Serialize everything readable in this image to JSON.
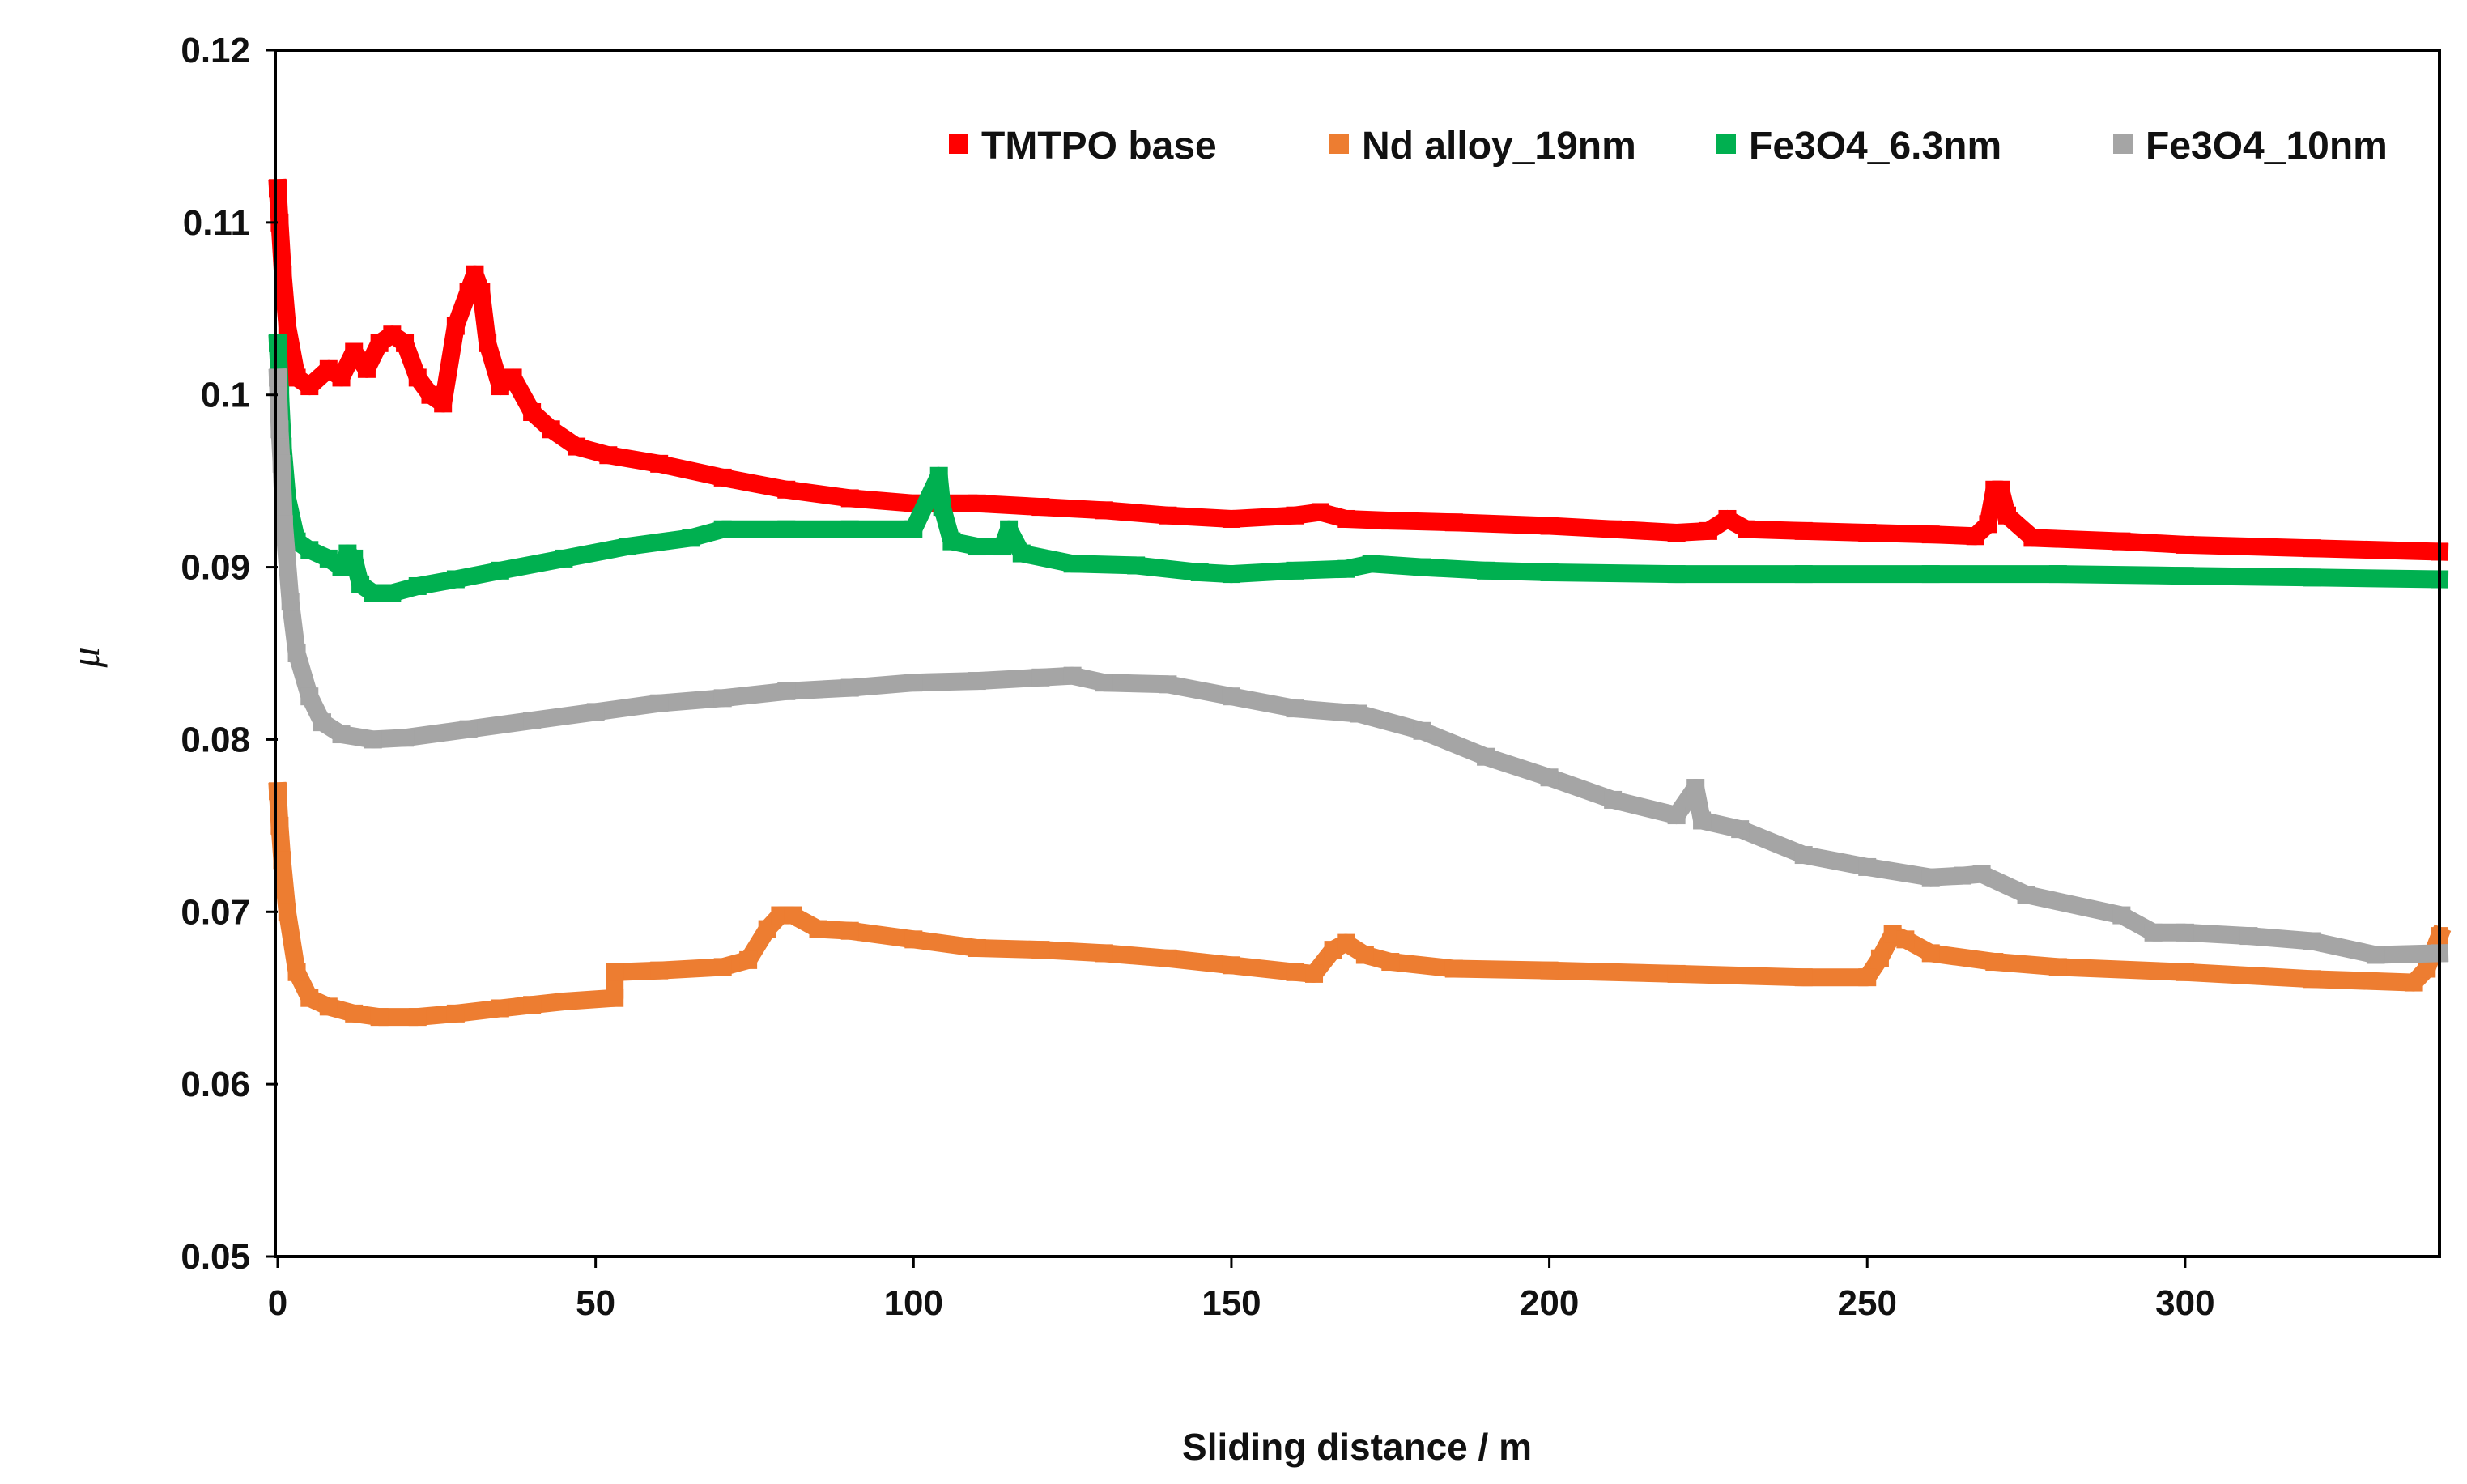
{
  "chart_data": {
    "type": "scatter",
    "title": "",
    "xlabel": "Sliding distance / m",
    "ylabel": "μ",
    "xlim": [
      0,
      340
    ],
    "ylim": [
      0.05,
      0.12
    ],
    "x_ticks": [
      "0",
      "50",
      "100",
      "150",
      "200",
      "250",
      "300"
    ],
    "y_ticks": [
      "0.05",
      "0.06",
      "0.07",
      "0.08",
      "0.09",
      "0.1",
      "0.11",
      "0.12"
    ],
    "grid": false,
    "legend_position": "top-right",
    "series": [
      {
        "name": "TMTPO base",
        "color": "#ff0000",
        "points": [
          [
            0,
            0.112
          ],
          [
            0.3,
            0.11
          ],
          [
            0.8,
            0.107
          ],
          [
            1.5,
            0.104
          ],
          [
            3,
            0.101
          ],
          [
            5,
            0.1005
          ],
          [
            8,
            0.1015
          ],
          [
            10,
            0.101
          ],
          [
            12,
            0.1025
          ],
          [
            14,
            0.1015
          ],
          [
            16,
            0.103
          ],
          [
            18,
            0.1035
          ],
          [
            20,
            0.103
          ],
          [
            22,
            0.101
          ],
          [
            24,
            0.1
          ],
          [
            26,
            0.0995
          ],
          [
            28,
            0.104
          ],
          [
            30,
            0.106
          ],
          [
            31,
            0.107
          ],
          [
            32,
            0.106
          ],
          [
            33,
            0.103
          ],
          [
            35,
            0.1005
          ],
          [
            37,
            0.101
          ],
          [
            40,
            0.099
          ],
          [
            43,
            0.098
          ],
          [
            47,
            0.097
          ],
          [
            52,
            0.0965
          ],
          [
            60,
            0.096
          ],
          [
            70,
            0.0952
          ],
          [
            80,
            0.0945
          ],
          [
            90,
            0.094
          ],
          [
            100,
            0.0937
          ],
          [
            110,
            0.0937
          ],
          [
            120,
            0.0935
          ],
          [
            130,
            0.0933
          ],
          [
            140,
            0.093
          ],
          [
            150,
            0.0928
          ],
          [
            160,
            0.093
          ],
          [
            164,
            0.0932
          ],
          [
            168,
            0.0928
          ],
          [
            175,
            0.0927
          ],
          [
            185,
            0.0926
          ],
          [
            200,
            0.0924
          ],
          [
            210,
            0.0922
          ],
          [
            220,
            0.092
          ],
          [
            225,
            0.0921
          ],
          [
            228,
            0.0928
          ],
          [
            231,
            0.0922
          ],
          [
            240,
            0.0921
          ],
          [
            250,
            0.092
          ],
          [
            260,
            0.0919
          ],
          [
            267,
            0.0918
          ],
          [
            269,
            0.0925
          ],
          [
            270,
            0.0945
          ],
          [
            271,
            0.0945
          ],
          [
            272,
            0.093
          ],
          [
            276,
            0.0917
          ],
          [
            290,
            0.0915
          ],
          [
            300,
            0.0913
          ],
          [
            320,
            0.0911
          ],
          [
            340,
            0.0909
          ]
        ]
      },
      {
        "name": "Nd alloy_19nm",
        "color": "#ed7d31",
        "points": [
          [
            0,
            0.077
          ],
          [
            0.3,
            0.075
          ],
          [
            0.7,
            0.073
          ],
          [
            1.5,
            0.07
          ],
          [
            3,
            0.0665
          ],
          [
            5,
            0.065
          ],
          [
            8,
            0.0645
          ],
          [
            12,
            0.0641
          ],
          [
            16,
            0.0639
          ],
          [
            22,
            0.0639
          ],
          [
            28,
            0.0641
          ],
          [
            35,
            0.0644
          ],
          [
            40,
            0.0646
          ],
          [
            45,
            0.0648
          ],
          [
            53,
            0.065
          ],
          [
            53,
            0.0665
          ],
          [
            60,
            0.0666
          ],
          [
            70,
            0.0668
          ],
          [
            74,
            0.0672
          ],
          [
            77,
            0.069
          ],
          [
            79,
            0.0698
          ],
          [
            81,
            0.0698
          ],
          [
            85,
            0.069
          ],
          [
            90,
            0.0689
          ],
          [
            100,
            0.0684
          ],
          [
            110,
            0.0679
          ],
          [
            120,
            0.0678
          ],
          [
            130,
            0.0676
          ],
          [
            140,
            0.0673
          ],
          [
            150,
            0.0669
          ],
          [
            160,
            0.0665
          ],
          [
            163,
            0.0664
          ],
          [
            166,
            0.0678
          ],
          [
            168,
            0.0682
          ],
          [
            171,
            0.0675
          ],
          [
            175,
            0.0671
          ],
          [
            185,
            0.0667
          ],
          [
            200,
            0.0666
          ],
          [
            220,
            0.0664
          ],
          [
            240,
            0.0662
          ],
          [
            250,
            0.0662
          ],
          [
            252,
            0.0673
          ],
          [
            254,
            0.0687
          ],
          [
            256,
            0.0684
          ],
          [
            260,
            0.0676
          ],
          [
            270,
            0.0671
          ],
          [
            280,
            0.0668
          ],
          [
            300,
            0.0665
          ],
          [
            320,
            0.0661
          ],
          [
            336,
            0.0659
          ],
          [
            338,
            0.0667
          ],
          [
            340,
            0.0686
          ]
        ]
      },
      {
        "name": "Fe3O4_6.3nm",
        "color": "#00b050",
        "points": [
          [
            0,
            0.103
          ],
          [
            0.4,
            0.1
          ],
          [
            0.8,
            0.097
          ],
          [
            1.5,
            0.094
          ],
          [
            3,
            0.0915
          ],
          [
            5,
            0.091
          ],
          [
            8,
            0.0905
          ],
          [
            10,
            0.09
          ],
          [
            11,
            0.0908
          ],
          [
            12,
            0.0905
          ],
          [
            13,
            0.089
          ],
          [
            15,
            0.0885
          ],
          [
            18,
            0.0885
          ],
          [
            22,
            0.0889
          ],
          [
            28,
            0.0893
          ],
          [
            35,
            0.0898
          ],
          [
            45,
            0.0905
          ],
          [
            55,
            0.0912
          ],
          [
            65,
            0.0917
          ],
          [
            70,
            0.0922
          ],
          [
            80,
            0.0922
          ],
          [
            90,
            0.0922
          ],
          [
            100,
            0.0922
          ],
          [
            104,
            0.0953
          ],
          [
            104.5,
            0.0935
          ],
          [
            106,
            0.0915
          ],
          [
            110,
            0.0912
          ],
          [
            114,
            0.0912
          ],
          [
            115,
            0.0922
          ],
          [
            117,
            0.0908
          ],
          [
            125,
            0.0902
          ],
          [
            135,
            0.0901
          ],
          [
            145,
            0.0897
          ],
          [
            150,
            0.0896
          ],
          [
            160,
            0.0898
          ],
          [
            168,
            0.0899
          ],
          [
            172,
            0.0902
          ],
          [
            180,
            0.09
          ],
          [
            190,
            0.0898
          ],
          [
            200,
            0.0897
          ],
          [
            220,
            0.0896
          ],
          [
            240,
            0.0896
          ],
          [
            260,
            0.0896
          ],
          [
            280,
            0.0896
          ],
          [
            300,
            0.0895
          ],
          [
            320,
            0.0894
          ],
          [
            340,
            0.0893
          ]
        ]
      },
      {
        "name": "Fe3O4_10nm",
        "color": "#a5a5a5",
        "points": [
          [
            0,
            0.101
          ],
          [
            0.3,
            0.098
          ],
          [
            0.6,
            0.096
          ],
          [
            1,
            0.0925
          ],
          [
            2,
            0.088
          ],
          [
            3,
            0.085
          ],
          [
            5,
            0.0825
          ],
          [
            7,
            0.081
          ],
          [
            10,
            0.0803
          ],
          [
            15,
            0.08
          ],
          [
            20,
            0.0801
          ],
          [
            30,
            0.0806
          ],
          [
            40,
            0.0811
          ],
          [
            50,
            0.0816
          ],
          [
            60,
            0.0821
          ],
          [
            70,
            0.0824
          ],
          [
            80,
            0.0828
          ],
          [
            90,
            0.083
          ],
          [
            100,
            0.0833
          ],
          [
            110,
            0.0834
          ],
          [
            120,
            0.0836
          ],
          [
            125,
            0.0837
          ],
          [
            130,
            0.0833
          ],
          [
            140,
            0.0832
          ],
          [
            150,
            0.0825
          ],
          [
            160,
            0.0818
          ],
          [
            170,
            0.0815
          ],
          [
            180,
            0.0805
          ],
          [
            190,
            0.079
          ],
          [
            200,
            0.0778
          ],
          [
            210,
            0.0765
          ],
          [
            220,
            0.0756
          ],
          [
            223,
            0.0772
          ],
          [
            224,
            0.0753
          ],
          [
            230,
            0.0748
          ],
          [
            240,
            0.0733
          ],
          [
            250,
            0.0726
          ],
          [
            260,
            0.072
          ],
          [
            265,
            0.0721
          ],
          [
            268,
            0.0722
          ],
          [
            275,
            0.071
          ],
          [
            290,
            0.0698
          ],
          [
            295,
            0.0688
          ],
          [
            300,
            0.0688
          ],
          [
            310,
            0.0686
          ],
          [
            320,
            0.0683
          ],
          [
            330,
            0.0675
          ],
          [
            340,
            0.0676
          ]
        ]
      }
    ]
  }
}
